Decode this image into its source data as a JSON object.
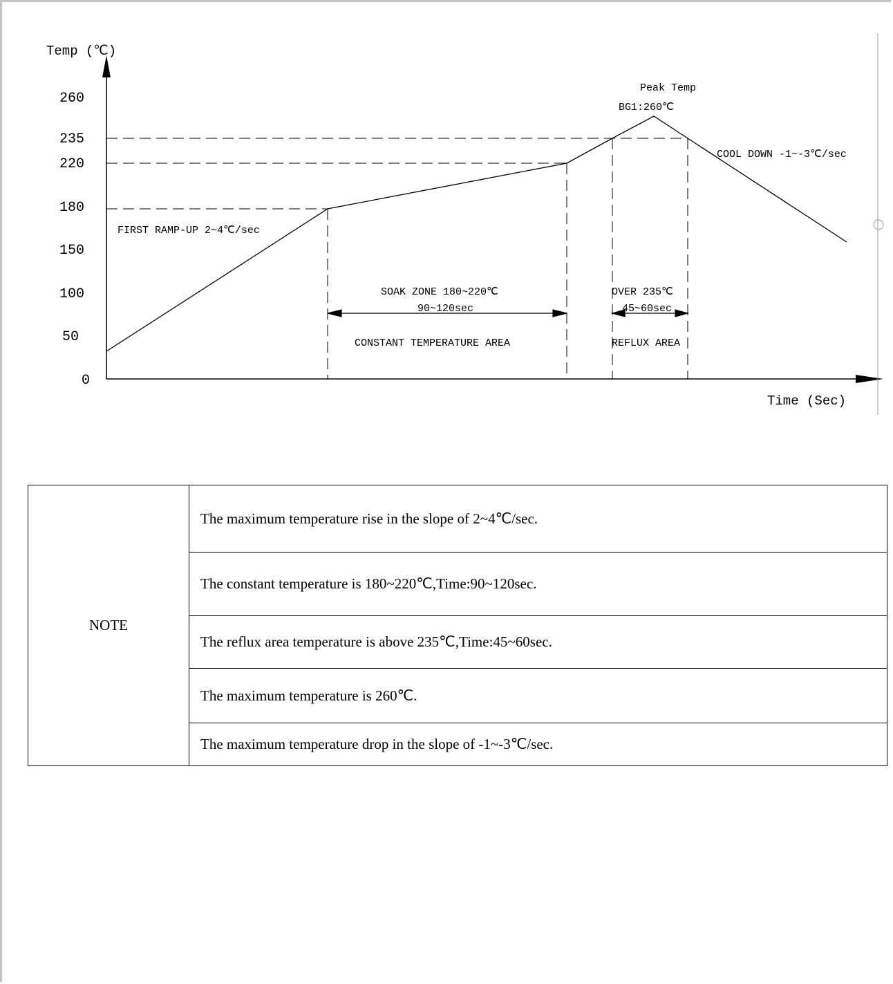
{
  "chart": {
    "y_axis_title": "Temp (℃)",
    "x_axis_title": "Time (Sec)",
    "y_ticks": [
      "260",
      "235",
      "220",
      "180",
      "150",
      "100",
      "50",
      "0"
    ],
    "peak_label": "Peak Temp",
    "peak_value_label": "BG1:260℃",
    "cool_down_label": "COOL DOWN -1~-3℃/sec",
    "ramp_up_label": "FIRST RAMP-UP 2~4℃/sec",
    "soak_zone_label": "SOAK ZONE 180~220℃",
    "soak_time_label": "90~120sec",
    "constant_area_label": "CONSTANT TEMPERATURE AREA",
    "over_label": "OVER 235℃",
    "over_time_label": "45~60sec",
    "reflux_area_label": "REFLUX AREA"
  },
  "chart_data": {
    "type": "line",
    "x_unit": "Sec",
    "y_unit": "℃",
    "ylim": [
      0,
      260
    ],
    "y_ticks": [
      0,
      50,
      100,
      150,
      180,
      220,
      235,
      260
    ],
    "profile_temps": [
      33,
      180,
      220,
      235,
      260,
      235,
      160
    ],
    "reference_levels": [
      180,
      220,
      235
    ],
    "grid": false
  },
  "notes": {
    "label": "NOTE",
    "rows": [
      "The maximum temperature rise in the slope of 2~4℃/sec.",
      "The constant temperature is 180~220℃,Time:90~120sec.",
      "The reflux area temperature is above 235℃,Time:45~60sec.",
      "The maximum temperature is 260℃.",
      "The maximum temperature drop in the slope of -1~-3℃/sec."
    ]
  }
}
